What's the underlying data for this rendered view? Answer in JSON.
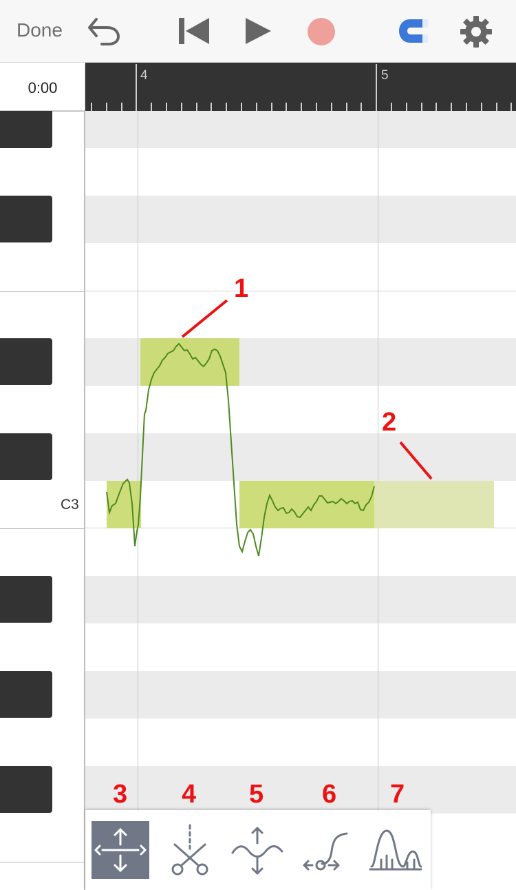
{
  "toolbar": {
    "done_label": "Done",
    "icons": [
      "undo-icon",
      "skip-to-start-icon",
      "play-icon",
      "record-icon",
      "snap-magnet-icon",
      "settings-gear-icon"
    ],
    "colors": {
      "record": "#f0a09a",
      "magnet": "#3b78d8",
      "icon": "#666666"
    }
  },
  "timeline": {
    "time": "0:00",
    "bars": [
      "4",
      "5"
    ]
  },
  "piano": {
    "note_label": "C3"
  },
  "annotations": [
    "1",
    "2",
    "3",
    "4",
    "5",
    "6",
    "7"
  ],
  "tools": [
    {
      "name": "move-resize-tool",
      "icon": "move-arrows-icon",
      "selected": true
    },
    {
      "name": "split-tool",
      "icon": "scissors-icon",
      "selected": false
    },
    {
      "name": "pitch-tool",
      "icon": "pitch-wave-icon",
      "selected": false
    },
    {
      "name": "transition-tool",
      "icon": "transition-curve-icon",
      "selected": false
    },
    {
      "name": "vibrato-tool",
      "icon": "vibrato-peaks-icon",
      "selected": false
    }
  ],
  "colors": {
    "note_fill": "#c8d96b",
    "note_ghost": "#dfe6b3",
    "pitch_curve": "#4e8a22",
    "annotation": "#ee1111",
    "active_tool": "#707887"
  }
}
